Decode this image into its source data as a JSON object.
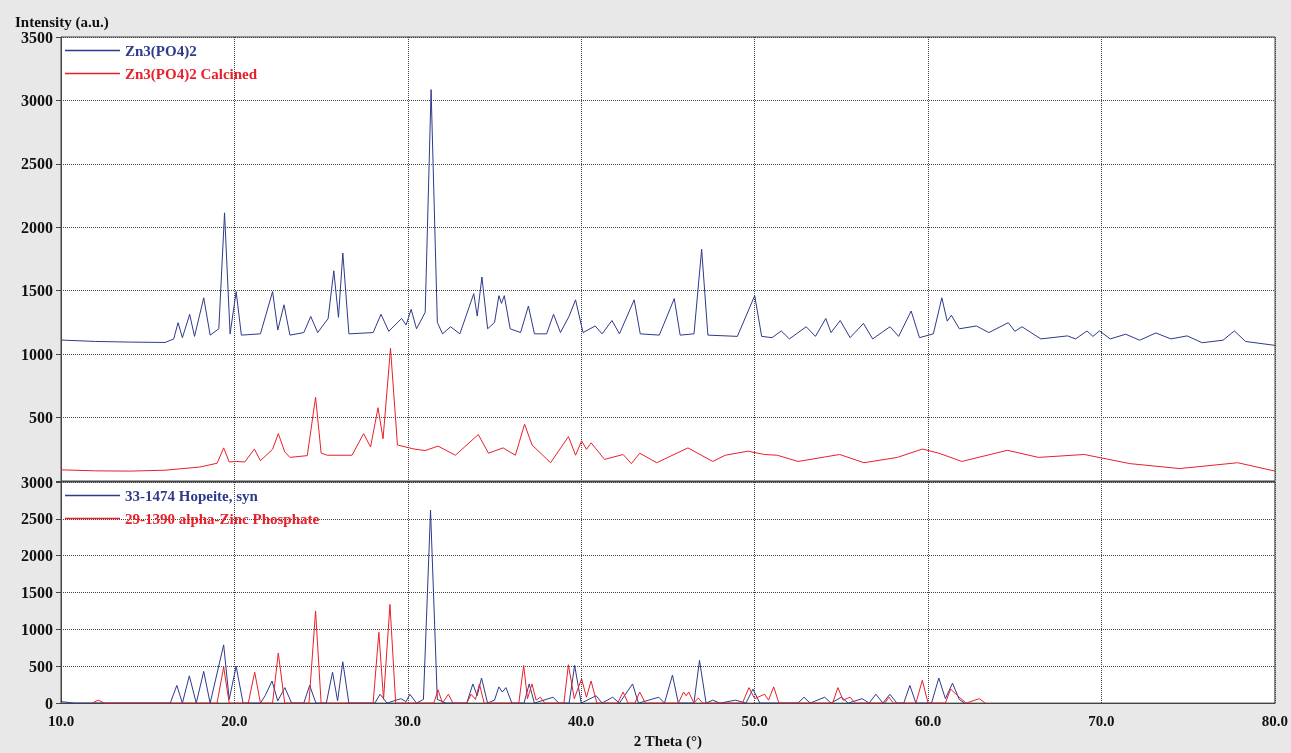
{
  "chart_data": [
    {
      "type": "line",
      "ylabel": "Intensity (a.u.)",
      "xlim": [
        10,
        80
      ],
      "xticks": [
        {
          "value": 10,
          "label": null
        },
        {
          "value": 20,
          "label": null
        },
        {
          "value": 30,
          "label": null
        },
        {
          "value": 40,
          "label": null
        },
        {
          "value": 50,
          "label": null
        },
        {
          "value": 60,
          "label": null
        },
        {
          "value": 70,
          "label": null
        },
        {
          "value": 80,
          "label": null
        }
      ],
      "ylim": [
        0,
        3500
      ],
      "yticks": [
        {
          "value": 0,
          "label": null
        },
        500,
        1000,
        1500,
        2000,
        2500,
        3000,
        3500
      ],
      "tick_labels": "y",
      "grid": true,
      "legend": "top left",
      "series": [
        {
          "name": "Zn3(PO4)2",
          "color": "#2e3a8c",
          "x": [
            10,
            12,
            14,
            16,
            16.5,
            16.75,
            17.0,
            17.42,
            17.7,
            18.23,
            18.6,
            19.1,
            19.43,
            19.75,
            20.1,
            20.4,
            21.5,
            22.2,
            22.5,
            22.86,
            23.2,
            24.0,
            24.4,
            24.8,
            25.4,
            25.73,
            26.0,
            26.25,
            26.6,
            28.0,
            28.45,
            28.9,
            29.64,
            29.9,
            30.19,
            30.5,
            31.0,
            31.34,
            31.7,
            32.0,
            32.46,
            33.0,
            33.8,
            34.0,
            34.27,
            34.6,
            35.0,
            35.25,
            35.4,
            35.56,
            35.9,
            36.5,
            36.95,
            37.3,
            38.0,
            38.4,
            38.8,
            39.3,
            39.67,
            40.1,
            40.8,
            41.2,
            41.77,
            42.2,
            43.05,
            43.4,
            44.5,
            45.36,
            45.7,
            46.5,
            46.94,
            47.3,
            49.0,
            50.0,
            50.4,
            51.0,
            51.53,
            52.0,
            52.97,
            53.5,
            54.1,
            54.4,
            54.93,
            55.5,
            56.27,
            56.8,
            57.8,
            58.3,
            59.02,
            59.5,
            60.3,
            60.79,
            61.1,
            61.34,
            61.8,
            62.78,
            63.5,
            64.62,
            65.0,
            65.41,
            66.5,
            68.04,
            68.5,
            69.16,
            69.5,
            69.88,
            70.5,
            71.39,
            72.2,
            73.13,
            74.0,
            74.93,
            75.8,
            77.0,
            77.66,
            78.3,
            80
          ],
          "values": [
            1111,
            1100,
            1095,
            1092,
            1120,
            1248,
            1130,
            1314,
            1140,
            1444,
            1150,
            1200,
            2114,
            1160,
            1493,
            1150,
            1160,
            1493,
            1190,
            1389,
            1150,
            1170,
            1297,
            1170,
            1280,
            1657,
            1290,
            1797,
            1160,
            1170,
            1314,
            1180,
            1281,
            1230,
            1353,
            1200,
            1330,
            3085,
            1250,
            1160,
            1216,
            1160,
            1477,
            1300,
            1608,
            1200,
            1250,
            1461,
            1400,
            1461,
            1200,
            1170,
            1379,
            1160,
            1160,
            1314,
            1170,
            1300,
            1428,
            1170,
            1222,
            1160,
            1265,
            1160,
            1428,
            1160,
            1150,
            1438,
            1150,
            1160,
            1827,
            1150,
            1140,
            1461,
            1140,
            1130,
            1183,
            1120,
            1216,
            1140,
            1281,
            1170,
            1265,
            1130,
            1242,
            1120,
            1216,
            1140,
            1340,
            1130,
            1160,
            1444,
            1260,
            1307,
            1200,
            1222,
            1170,
            1248,
            1180,
            1216,
            1120,
            1144,
            1120,
            1183,
            1140,
            1183,
            1120,
            1157,
            1110,
            1167,
            1120,
            1144,
            1090,
            1110,
            1183,
            1100,
            1069
          ]
        },
        {
          "name": "Zn3(PO4)2 Calcined",
          "color": "#e8202a",
          "x": [
            10,
            12,
            14,
            16,
            18,
            19.0,
            19.38,
            19.7,
            20.1,
            20.6,
            21.15,
            21.5,
            22.2,
            22.53,
            22.9,
            23.2,
            24.2,
            24.68,
            25.0,
            25.35,
            26.78,
            27.45,
            27.85,
            28.28,
            28.57,
            29.0,
            29.4,
            30.36,
            31.0,
            31.74,
            32.74,
            34.06,
            34.65,
            35.49,
            36.2,
            36.73,
            37.16,
            38.23,
            39.26,
            39.67,
            40.02,
            40.3,
            40.57,
            41.34,
            42.41,
            42.89,
            43.37,
            44.35,
            46.15,
            47.58,
            48.3,
            49.6,
            50.57,
            51.3,
            52.5,
            54.9,
            56.3,
            58.23,
            59.67,
            60.62,
            61.94,
            64.57,
            66.36,
            69.0,
            71.63,
            74.5,
            77.85,
            80
          ],
          "values": [
            88,
            80,
            78,
            85,
            110,
            140,
            261,
            150,
            154,
            150,
            252,
            160,
            250,
            373,
            230,
            186,
            200,
            660,
            220,
            203,
            203,
            373,
            268,
            578,
            333,
            1046,
            284,
            252,
            240,
            275,
            203,
            366,
            219,
            261,
            203,
            448,
            284,
            144,
            350,
            203,
            317,
            250,
            301,
            170,
            209,
            137,
            219,
            144,
            261,
            154,
            203,
            235,
            209,
            203,
            154,
            209,
            144,
            186,
            252,
            219,
            154,
            242,
            186,
            209,
            137,
            98,
            144,
            78
          ]
        }
      ]
    },
    {
      "type": "line",
      "xlabel": "2 Theta (°)",
      "xlim": [
        10,
        80
      ],
      "xticks": [
        {
          "value": 10,
          "label": "10.0"
        },
        {
          "value": 20,
          "label": "20.0"
        },
        {
          "value": 30,
          "label": "30.0"
        },
        {
          "value": 40,
          "label": "40.0"
        },
        {
          "value": 50,
          "label": "50.0"
        },
        {
          "value": 60,
          "label": "60.0"
        },
        {
          "value": 70,
          "label": "70.0"
        },
        {
          "value": 80,
          "label": "80.0"
        }
      ],
      "ylim": [
        0,
        3000
      ],
      "yticks": [
        0,
        500,
        1000,
        1500,
        2000,
        2500,
        3000
      ],
      "grid": true,
      "legend": "top left",
      "series": [
        {
          "name": "33-1474 Hopeite, syn",
          "color": "#2e3a8c",
          "x": [
            10,
            10.8,
            16.3,
            16.68,
            17.0,
            17.4,
            17.8,
            18.23,
            18.6,
            19.38,
            19.7,
            20.1,
            20.5,
            21.5,
            21.77,
            22.17,
            22.5,
            22.91,
            23.3,
            24.0,
            24.34,
            24.7,
            25.3,
            25.66,
            25.95,
            26.25,
            26.6,
            28.1,
            28.4,
            28.8,
            29.59,
            29.9,
            30.12,
            30.5,
            30.9,
            31.31,
            31.7,
            32.2,
            33.4,
            33.75,
            34.0,
            34.25,
            34.6,
            35.0,
            35.25,
            35.45,
            35.66,
            36.0,
            36.7,
            37.0,
            37.3,
            38.38,
            38.7,
            39.3,
            39.62,
            40.0,
            40.86,
            41.2,
            41.81,
            42.2,
            42.96,
            43.3,
            44.47,
            44.8,
            45.26,
            45.6,
            46.5,
            46.82,
            47.2,
            47.58,
            48.0,
            48.9,
            49.5,
            49.9,
            50.3,
            52.5,
            52.85,
            53.2,
            54.04,
            54.4,
            55.0,
            55.4,
            56.2,
            56.6,
            56.99,
            57.4,
            57.8,
            58.2,
            58.6,
            58.95,
            59.3,
            60.2,
            60.62,
            61.0,
            61.41,
            61.8,
            62.1
          ],
          "values": [
            20,
            0,
            0,
            240,
            0,
            370,
            0,
            430,
            0,
            790,
            50,
            500,
            0,
            0,
            100,
            300,
            30,
            210,
            0,
            0,
            240,
            0,
            0,
            420,
            30,
            560,
            0,
            0,
            120,
            0,
            60,
            20,
            120,
            0,
            50,
            2620,
            50,
            0,
            0,
            260,
            100,
            340,
            0,
            40,
            220,
            150,
            210,
            0,
            0,
            260,
            0,
            80,
            0,
            0,
            510,
            0,
            100,
            0,
            80,
            0,
            260,
            0,
            80,
            0,
            380,
            0,
            0,
            580,
            0,
            40,
            0,
            40,
            0,
            190,
            0,
            0,
            80,
            0,
            80,
            0,
            80,
            0,
            60,
            0,
            120,
            0,
            120,
            0,
            0,
            240,
            0,
            0,
            340,
            60,
            270,
            50,
            0
          ]
        },
        {
          "name": "29-1390 alpha-Zinc Phosphate",
          "color": "#e8202a",
          "x": [
            11.8,
            12.15,
            12.5,
            19.0,
            19.38,
            19.7,
            20.8,
            21.17,
            21.5,
            22.2,
            22.53,
            22.9,
            24.3,
            24.68,
            25.0,
            28.0,
            28.33,
            28.6,
            28.97,
            29.3,
            31.5,
            31.74,
            32.0,
            32.34,
            32.6,
            33.4,
            33.65,
            33.9,
            34.13,
            34.4,
            36.4,
            36.68,
            36.9,
            37.16,
            37.4,
            37.64,
            37.9,
            39.0,
            39.26,
            39.6,
            40.02,
            40.3,
            40.57,
            40.9,
            42.1,
            42.41,
            42.7,
            43.1,
            43.37,
            43.7,
            45.6,
            45.9,
            46.05,
            46.2,
            46.5,
            46.75,
            47.0,
            49.3,
            49.67,
            50.0,
            50.57,
            50.8,
            51.1,
            51.4,
            54.5,
            54.8,
            55.1,
            55.5,
            55.8,
            57.5,
            57.75,
            58.0,
            59.3,
            59.67,
            60.0,
            61.0,
            61.3,
            61.8,
            62.2,
            62.96,
            63.3
          ],
          "values": [
            0,
            40,
            0,
            0,
            490,
            0,
            0,
            420,
            0,
            0,
            680,
            0,
            0,
            1250,
            0,
            0,
            960,
            50,
            1340,
            0,
            0,
            180,
            0,
            120,
            0,
            0,
            120,
            50,
            260,
            0,
            0,
            510,
            60,
            260,
            40,
            80,
            0,
            0,
            520,
            60,
            330,
            80,
            300,
            0,
            0,
            150,
            0,
            0,
            150,
            0,
            0,
            150,
            100,
            150,
            0,
            70,
            0,
            0,
            210,
            60,
            120,
            40,
            220,
            0,
            0,
            210,
            40,
            80,
            0,
            0,
            80,
            0,
            0,
            310,
            0,
            0,
            190,
            80,
            0,
            60,
            0
          ]
        }
      ]
    }
  ]
}
